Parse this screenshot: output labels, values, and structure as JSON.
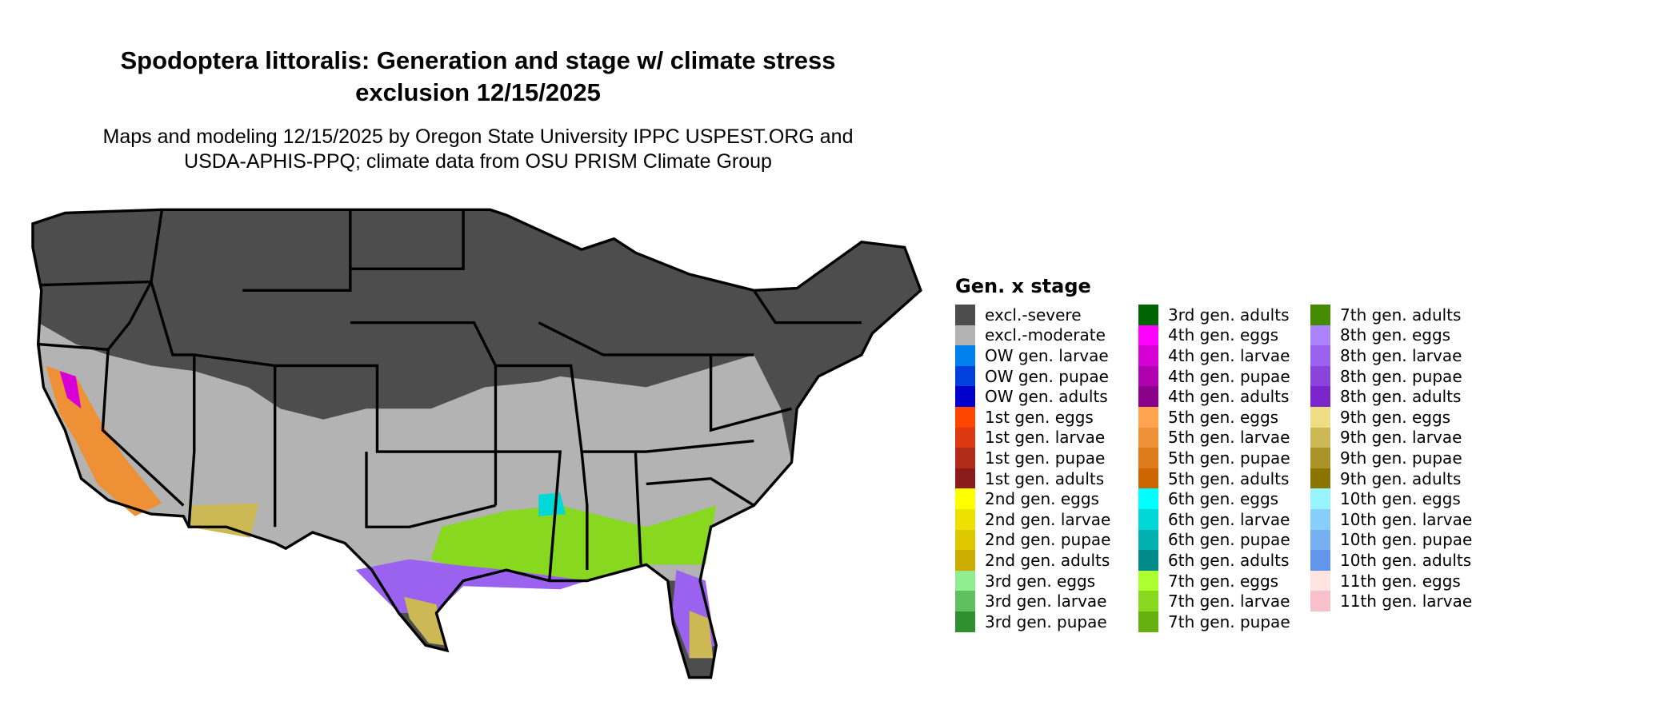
{
  "chart_data": {
    "type": "map",
    "title_line1": "Spodoptera littoralis: Generation and stage w/ climate stress",
    "title_line2": "exclusion 12/15/2025",
    "subtitle_line1": "Maps and modeling 12/15/2025 by Oregon State University IPPC USPEST.ORG and",
    "subtitle_line2": "USDA-APHIS-PPQ; climate data from OSU PRISM Climate Group",
    "legend_title": "Gen. x stage",
    "legend_placement": "right",
    "legend": [
      {
        "label": "excl.-severe",
        "color": "#4d4d4d"
      },
      {
        "label": "excl.-moderate",
        "color": "#b3b3b3"
      },
      {
        "label": "OW gen. larvae",
        "color": "#0080ee"
      },
      {
        "label": "OW gen. pupae",
        "color": "#0040dd"
      },
      {
        "label": "OW gen. adults",
        "color": "#0000cc"
      },
      {
        "label": "1st gen. eggs",
        "color": "#ff4500"
      },
      {
        "label": "1st gen. larvae",
        "color": "#dc3812"
      },
      {
        "label": "1st gen. pupae",
        "color": "#b22a18"
      },
      {
        "label": "1st gen. adults",
        "color": "#8b1a1a"
      },
      {
        "label": "2nd gen. eggs",
        "color": "#ffff00"
      },
      {
        "label": "2nd gen. larvae",
        "color": "#eee000"
      },
      {
        "label": "2nd gen. pupae",
        "color": "#ddc800"
      },
      {
        "label": "2nd gen. adults",
        "color": "#ccac00"
      },
      {
        "label": "3rd gen. eggs",
        "color": "#90ee90"
      },
      {
        "label": "3rd gen. larvae",
        "color": "#60c060"
      },
      {
        "label": "3rd gen. pupae",
        "color": "#309030"
      },
      {
        "label": "3rd gen. adults",
        "color": "#006400"
      },
      {
        "label": "4th gen. eggs",
        "color": "#ff00ff"
      },
      {
        "label": "4th gen. larvae",
        "color": "#d600d6"
      },
      {
        "label": "4th gen. pupae",
        "color": "#b000b0"
      },
      {
        "label": "4th gen. adults",
        "color": "#8b008b"
      },
      {
        "label": "5th gen. eggs",
        "color": "#ffa54f"
      },
      {
        "label": "5th gen. larvae",
        "color": "#ee9035"
      },
      {
        "label": "5th gen. pupae",
        "color": "#dd7a1a"
      },
      {
        "label": "5th gen. adults",
        "color": "#cd6600"
      },
      {
        "label": "6th gen. eggs",
        "color": "#00ffff"
      },
      {
        "label": "6th gen. larvae",
        "color": "#00d8d8"
      },
      {
        "label": "6th gen. pupae",
        "color": "#00b0b0"
      },
      {
        "label": "6th gen. adults",
        "color": "#008b8b"
      },
      {
        "label": "7th gen. eggs",
        "color": "#adff2f"
      },
      {
        "label": "7th gen. larvae",
        "color": "#88d820"
      },
      {
        "label": "7th gen. pupae",
        "color": "#66b010"
      },
      {
        "label": "7th gen. adults",
        "color": "#458b00"
      },
      {
        "label": "8th gen. eggs",
        "color": "#ab82ff"
      },
      {
        "label": "8th gen. larvae",
        "color": "#9a62ee"
      },
      {
        "label": "8th gen. pupae",
        "color": "#8a44dd"
      },
      {
        "label": "8th gen. adults",
        "color": "#7a26cc"
      },
      {
        "label": "9th gen. eggs",
        "color": "#eedd82"
      },
      {
        "label": "9th gen. larvae",
        "color": "#ccb855"
      },
      {
        "label": "9th gen. pupae",
        "color": "#aa9428"
      },
      {
        "label": "9th gen. adults",
        "color": "#8b7500"
      },
      {
        "label": "10th gen. eggs",
        "color": "#98f5ff"
      },
      {
        "label": "10th gen. larvae",
        "color": "#87cefa"
      },
      {
        "label": "10th gen. pupae",
        "color": "#76b0f0"
      },
      {
        "label": "10th gen. adults",
        "color": "#6495ed"
      },
      {
        "label": "11th gen. eggs",
        "color": "#ffe4e1"
      },
      {
        "label": "11th gen. larvae",
        "color": "#f8c0cb"
      }
    ]
  }
}
